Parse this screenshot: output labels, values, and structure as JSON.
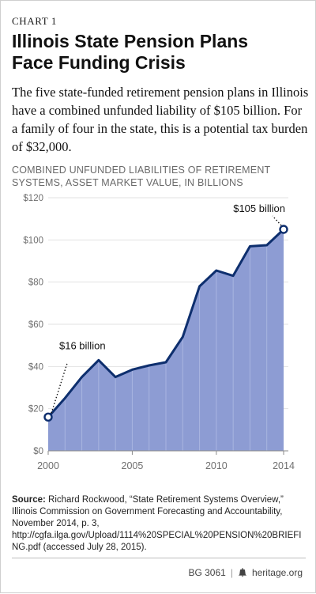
{
  "header": {
    "kicker": "CHART 1",
    "title_line1": "Illinois State Pension Plans",
    "title_line2": "Face Funding Crisis",
    "subtitle": "The five state-funded retirement pension plans in Illinois have a combined unfunded liability of $105 billion. For a family of four in the state, this is a potential tax burden of $32,000."
  },
  "chart_heading": {
    "line1": "COMBINED UNFUNDED LIABILITIES OF RETIREMENT",
    "line2": "SYSTEMS, ASSET MARKET VALUE, IN BILLIONS"
  },
  "chart_data": {
    "type": "area",
    "x": [
      2000,
      2001,
      2002,
      2003,
      2004,
      2005,
      2006,
      2007,
      2008,
      2009,
      2010,
      2011,
      2012,
      2013,
      2014
    ],
    "series": [
      {
        "values": [
          16,
          25,
          35,
          43,
          35,
          38.5,
          40.5,
          42,
          54,
          78,
          85.5,
          83,
          97,
          97.5,
          105
        ]
      }
    ],
    "xlim": [
      2000,
      2014
    ],
    "ylim": [
      0,
      120
    ],
    "x_ticks": [
      2000,
      2005,
      2010,
      2014
    ],
    "y_ticks": [
      0,
      20,
      40,
      60,
      80,
      100,
      120
    ],
    "y_tick_labels": [
      "$0",
      "$20",
      "$40",
      "$60",
      "$80",
      "$100",
      "$120"
    ],
    "x_tick_labels": [
      "2000",
      "2005",
      "2010",
      "2014"
    ],
    "grid": true,
    "fill_color": "#8d9cd3",
    "line_color": "#0e2f6e",
    "annotations": [
      {
        "text": "$16 billion",
        "x": 2000,
        "y": 16
      },
      {
        "text": "$105 billion",
        "x": 2014,
        "y": 105
      }
    ]
  },
  "source": {
    "label": "Source:",
    "text": "Richard Rockwood, “State Retirement Systems Overview,” Illinois Commission on Government Forecasting and Accountability, November 2014, p. 3, http://cgfa.ilga.gov/Upload/1114%20SPECIAL%20PENSION%20BRIEFING.pdf (accessed July 28, 2015)."
  },
  "footer": {
    "code": "BG 3061",
    "site": "heritage.org",
    "icon": "liberty-bell-icon"
  }
}
